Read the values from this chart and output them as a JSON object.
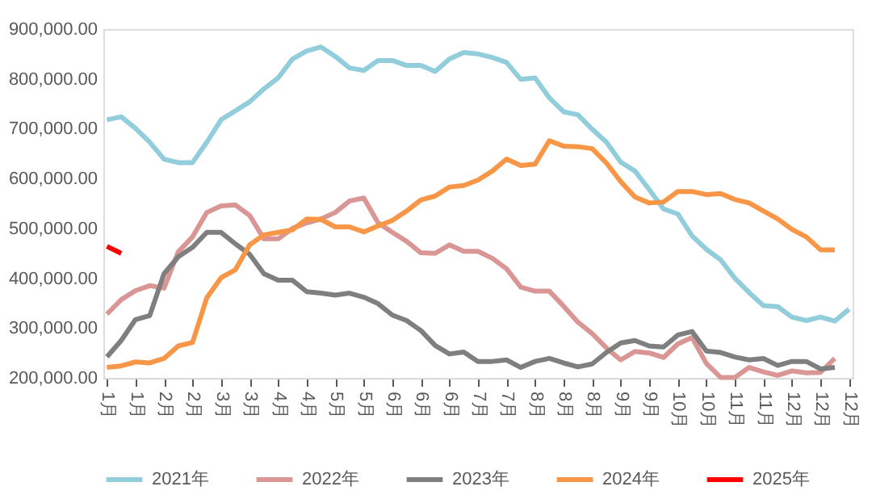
{
  "chart_data": {
    "type": "line",
    "categories": [
      "1月",
      null,
      "1月",
      null,
      "2月",
      null,
      "2月",
      null,
      "3月",
      null,
      "3月",
      null,
      "4月",
      null,
      "4月",
      null,
      "5月",
      null,
      "5月",
      null,
      "6月",
      null,
      "6月",
      null,
      "6月",
      null,
      "7月",
      null,
      "7月",
      null,
      "8月",
      null,
      "8月",
      null,
      "8月",
      null,
      "9月",
      null,
      "9月",
      null,
      "10月",
      null,
      "10月",
      null,
      "11月",
      null,
      "11月",
      null,
      "12月",
      null,
      "12月",
      null,
      "12月"
    ],
    "ylim": [
      200000,
      900000
    ],
    "yticks": [
      {
        "value": 200000,
        "label": "200,000.00"
      },
      {
        "value": 300000,
        "label": "300,000.00"
      },
      {
        "value": 400000,
        "label": "400,000.00"
      },
      {
        "value": 500000,
        "label": "500,000.00"
      },
      {
        "value": 600000,
        "label": "600,000.00"
      },
      {
        "value": 700000,
        "label": "700,000.00"
      },
      {
        "value": 800000,
        "label": "800,000.00"
      },
      {
        "value": 900000,
        "label": "900,000.00"
      }
    ],
    "legend": "bottom",
    "series": [
      {
        "name": "2021年",
        "color": "#92cddc",
        "values": [
          718000,
          724000,
          701000,
          673000,
          639000,
          632000,
          632000,
          673000,
          718000,
          736000,
          754000,
          780000,
          802000,
          840000,
          856000,
          864000,
          845000,
          822000,
          817000,
          837000,
          837000,
          827000,
          827000,
          815000,
          840000,
          853000,
          850000,
          843000,
          833000,
          799000,
          802000,
          762000,
          734000,
          728000,
          699000,
          673000,
          633000,
          615000,
          578000,
          539000,
          529000,
          485000,
          458000,
          437000,
          400000,
          371000,
          345000,
          343000,
          322000,
          315000,
          322000,
          314000,
          338000
        ]
      },
      {
        "name": "2022年",
        "color": "#da9694",
        "values": [
          328000,
          357000,
          375000,
          385000,
          380000,
          453000,
          483000,
          532000,
          545000,
          547000,
          526000,
          479000,
          479000,
          500000,
          511000,
          519000,
          532000,
          555000,
          561000,
          511000,
          492000,
          474000,
          451000,
          450000,
          467000,
          454000,
          454000,
          440000,
          419000,
          382000,
          374000,
          374000,
          344000,
          312000,
          289000,
          260000,
          236000,
          253000,
          250000,
          241000,
          268000,
          281000,
          229000,
          201000,
          201000,
          221000,
          212000,
          205000,
          214000,
          210000,
          211000,
          239000,
          null
        ]
      },
      {
        "name": "2023年",
        "color": "#7f7f7f",
        "values": [
          242000,
          275000,
          317000,
          325000,
          409000,
          443000,
          462000,
          492000,
          492000,
          469000,
          448000,
          409000,
          396000,
          396000,
          373000,
          370000,
          366000,
          370000,
          362000,
          349000,
          326000,
          315000,
          295000,
          265000,
          248000,
          252000,
          233000,
          233000,
          236000,
          221000,
          233000,
          239000,
          230000,
          222000,
          228000,
          251000,
          270000,
          275000,
          264000,
          262000,
          286000,
          293000,
          254000,
          251000,
          242000,
          236000,
          239000,
          225000,
          233000,
          233000,
          218000,
          221000,
          null
        ]
      },
      {
        "name": "2024年",
        "color": "#f79646",
        "values": [
          221000,
          224000,
          232000,
          230000,
          239000,
          264000,
          271000,
          361000,
          401000,
          417000,
          467000,
          487000,
          492000,
          497000,
          519000,
          518000,
          503000,
          503000,
          493000,
          505000,
          516000,
          535000,
          557000,
          565000,
          583000,
          586000,
          597000,
          615000,
          639000,
          626000,
          629000,
          676000,
          665000,
          664000,
          660000,
          631000,
          594000,
          563000,
          551000,
          553000,
          574000,
          574000,
          568000,
          570000,
          558000,
          551000,
          535000,
          519000,
          498000,
          483000,
          457000,
          457000,
          null
        ]
      },
      {
        "name": "2025年",
        "color": "#ff0000",
        "values": [
          464000,
          450000,
          null,
          null,
          null,
          null,
          null,
          null,
          null,
          null,
          null,
          null,
          null,
          null,
          null,
          null,
          null,
          null,
          null,
          null,
          null,
          null,
          null,
          null,
          null,
          null,
          null,
          null,
          null,
          null,
          null,
          null,
          null,
          null,
          null,
          null,
          null,
          null,
          null,
          null,
          null,
          null,
          null,
          null,
          null,
          null,
          null,
          null,
          null,
          null,
          null,
          null,
          null
        ]
      }
    ]
  }
}
